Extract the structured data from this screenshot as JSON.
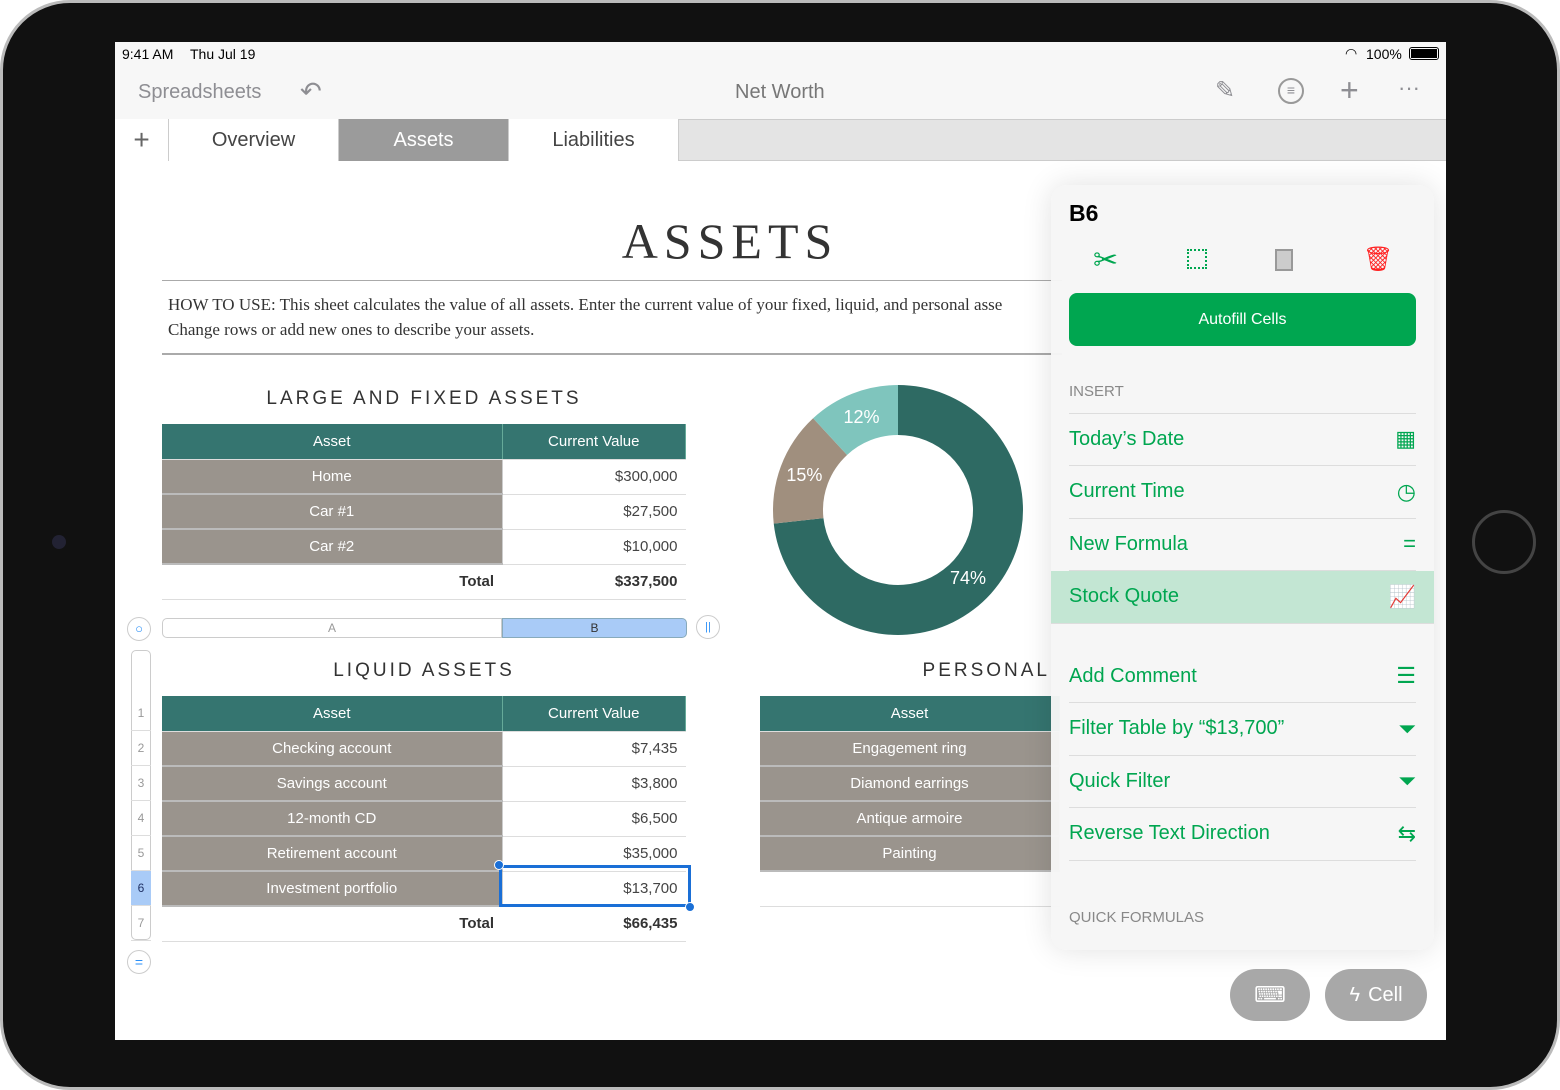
{
  "status": {
    "time": "9:41 AM",
    "date": "Thu Jul 19",
    "battery": "100%"
  },
  "nav": {
    "back": "Spreadsheets",
    "title": "Net Worth"
  },
  "tabs": [
    {
      "label": "Overview"
    },
    {
      "label": "Assets",
      "active": true
    },
    {
      "label": "Liabilities"
    }
  ],
  "sheet": {
    "title": "ASSETS",
    "howto": "HOW TO USE: This sheet calculates the value of all assets. Enter the current value of your fixed, liquid, and personal asse",
    "howto2": "Change rows or add new ones to describe your assets.",
    "fixed": {
      "title": "LARGE AND FIXED ASSETS",
      "headers": [
        "Asset",
        "Current Value"
      ],
      "rows": [
        [
          "Home",
          "$300,000"
        ],
        [
          "Car #1",
          "$27,500"
        ],
        [
          "Car #2",
          "$10,000"
        ]
      ],
      "total_label": "Total",
      "total": "$337,500"
    },
    "columns": [
      "A",
      "B"
    ],
    "liquid": {
      "title": "LIQUID ASSETS",
      "headers": [
        "Asset",
        "Current Value"
      ],
      "rows": [
        [
          "Checking account",
          "$7,435"
        ],
        [
          "Savings account",
          "$3,800"
        ],
        [
          "12-month CD",
          "$6,500"
        ],
        [
          "Retirement account",
          "$35,000"
        ],
        [
          "Investment portfolio",
          "$13,700"
        ]
      ],
      "total_label": "Total",
      "total": "$66,435"
    },
    "row_numbers": [
      "1",
      "2",
      "3",
      "4",
      "5",
      "6",
      "7"
    ],
    "personal": {
      "title": "PERSONAL",
      "headers": [
        "Asset"
      ],
      "rows": [
        "Engagement ring",
        "Diamond earrings",
        "Antique armoire",
        "Painting"
      ]
    }
  },
  "chart_data": {
    "type": "pie",
    "donut": true,
    "slices": [
      {
        "label": "74%",
        "value": 74,
        "color": "#2e6a63"
      },
      {
        "label": "15%",
        "value": 15,
        "color": "#a08f7e"
      },
      {
        "label": "12%",
        "value": 12,
        "color": "#7fc5bd"
      }
    ]
  },
  "panel": {
    "cell": "B6",
    "autofill": "Autofill Cells",
    "insert_header": "INSERT",
    "insert": [
      {
        "label": "Today’s Date",
        "icon": "calendar-icon"
      },
      {
        "label": "Current Time",
        "icon": "clock-icon"
      },
      {
        "label": "New Formula",
        "icon": "formula-icon"
      },
      {
        "label": "Stock Quote",
        "icon": "stock-chart-icon",
        "highlighted": true
      }
    ],
    "more": [
      {
        "label": "Add Comment",
        "icon": "comment-icon"
      },
      {
        "label": "Filter Table by “$13,700”",
        "icon": "filter-icon"
      },
      {
        "label": "Quick Filter",
        "icon": "quick-filter-icon"
      },
      {
        "label": "Reverse Text Direction",
        "icon": "reverse-arrows-icon"
      }
    ],
    "quick_header": "QUICK FORMULAS"
  },
  "bottom": {
    "cell_button": "Cell"
  },
  "colors": {
    "accent": "#00a650",
    "header": "#357570",
    "label": "#9a948d",
    "danger": "#ff2a2a"
  }
}
